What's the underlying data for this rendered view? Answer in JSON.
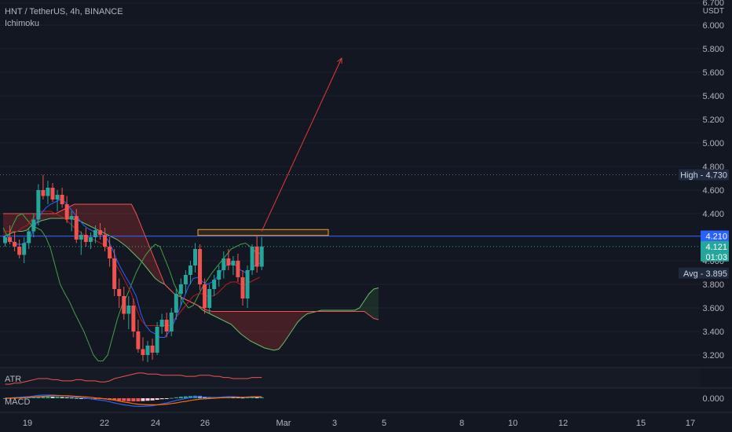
{
  "legend": {
    "symbol_line": "HNT / TetherUS, 4h, BINANCE",
    "indicator": "Ichimoku"
  },
  "panes": {
    "atr_label": "ATR",
    "macd_label": "MACD"
  },
  "colors": {
    "background": "#131722",
    "up": "#26a69a",
    "down": "#ef5350",
    "price_line": "#2962ff",
    "high_tag": "#1e2a44",
    "current_tag": "#26a69a",
    "projection": "#e53935",
    "box": "#f0a030",
    "tenkan": "#2962ff",
    "kijun": "#b71c1c",
    "chikou": "#43a047",
    "span_a": "#66bb6a",
    "span_b": "#ef5350"
  },
  "chart_data": {
    "type": "candlestick",
    "symbol": "HNT / TetherUS",
    "timeframe": "4h",
    "exchange": "BINANCE",
    "y_axis": {
      "unit": "USDT",
      "range": [
        3.13,
        6.7
      ],
      "ticks": [
        "3.200",
        "3.400",
        "3.600",
        "3.800",
        "4.000",
        "4.200",
        "4.400",
        "4.600",
        "4.800",
        "5.000",
        "5.200",
        "5.400",
        "5.600",
        "5.800",
        "6.000",
        "6.700"
      ]
    },
    "x_axis": {
      "tick_labels": [
        "19",
        "22",
        "24",
        "26",
        "Mar",
        "3",
        "5",
        "8",
        "10",
        "12",
        "15",
        "17"
      ]
    },
    "price_tags": [
      {
        "label": "High",
        "value": "4.730"
      },
      {
        "label": "",
        "value": "4.210"
      },
      {
        "label": "",
        "value": "4.121",
        "sub": "01:03"
      },
      {
        "label": "Avg",
        "value": "3.895"
      }
    ],
    "macd_tick": "0.000",
    "candles": [
      [
        4.15,
        4.22,
        4.12,
        4.2
      ],
      [
        4.2,
        4.3,
        4.14,
        4.16
      ],
      [
        4.16,
        4.24,
        4.08,
        4.12
      ],
      [
        4.12,
        4.18,
        4.02,
        4.05
      ],
      [
        4.05,
        4.2,
        3.98,
        4.15
      ],
      [
        4.15,
        4.28,
        4.1,
        4.25
      ],
      [
        4.25,
        4.4,
        4.2,
        4.35
      ],
      [
        4.35,
        4.65,
        4.3,
        4.6
      ],
      [
        4.6,
        4.73,
        4.52,
        4.55
      ],
      [
        4.55,
        4.68,
        4.48,
        4.62
      ],
      [
        4.62,
        4.66,
        4.5,
        4.52
      ],
      [
        4.52,
        4.6,
        4.42,
        4.56
      ],
      [
        4.56,
        4.62,
        4.45,
        4.48
      ],
      [
        4.48,
        4.55,
        4.32,
        4.35
      ],
      [
        4.35,
        4.42,
        4.25,
        4.38
      ],
      [
        4.38,
        4.44,
        4.15,
        4.18
      ],
      [
        4.18,
        4.25,
        4.05,
        4.22
      ],
      [
        4.22,
        4.28,
        4.12,
        4.16
      ],
      [
        4.16,
        4.24,
        4.1,
        4.2
      ],
      [
        4.2,
        4.3,
        4.15,
        4.26
      ],
      [
        4.26,
        4.32,
        4.18,
        4.22
      ],
      [
        4.22,
        4.28,
        4.08,
        4.12
      ],
      [
        4.12,
        4.2,
        3.95,
        4.02
      ],
      [
        4.02,
        4.1,
        3.7,
        3.76
      ],
      [
        3.76,
        3.85,
        3.6,
        3.7
      ],
      [
        3.7,
        3.78,
        3.5,
        3.55
      ],
      [
        3.55,
        3.7,
        3.42,
        3.62
      ],
      [
        3.62,
        3.68,
        3.35,
        3.4
      ],
      [
        3.4,
        3.5,
        3.22,
        3.25
      ],
      [
        3.25,
        3.35,
        3.15,
        3.2
      ],
      [
        3.2,
        3.32,
        3.14,
        3.28
      ],
      [
        3.28,
        3.34,
        3.16,
        3.22
      ],
      [
        3.22,
        3.48,
        3.2,
        3.44
      ],
      [
        3.44,
        3.55,
        3.38,
        3.5
      ],
      [
        3.5,
        3.56,
        3.35,
        3.4
      ],
      [
        3.4,
        3.6,
        3.36,
        3.56
      ],
      [
        3.56,
        3.76,
        3.5,
        3.72
      ],
      [
        3.72,
        3.85,
        3.62,
        3.8
      ],
      [
        3.8,
        3.92,
        3.72,
        3.88
      ],
      [
        3.88,
        4.0,
        3.8,
        3.96
      ],
      [
        3.96,
        4.15,
        3.9,
        4.1
      ],
      [
        4.1,
        4.14,
        3.75,
        3.8
      ],
      [
        3.8,
        3.85,
        3.55,
        3.6
      ],
      [
        3.6,
        3.8,
        3.55,
        3.76
      ],
      [
        3.76,
        3.88,
        3.7,
        3.84
      ],
      [
        3.84,
        3.96,
        3.78,
        3.92
      ],
      [
        3.92,
        4.08,
        3.85,
        4.02
      ],
      [
        4.02,
        4.1,
        3.92,
        3.96
      ],
      [
        3.96,
        4.04,
        3.88,
        4.0
      ],
      [
        4.0,
        4.06,
        3.82,
        3.86
      ],
      [
        3.86,
        3.92,
        3.62,
        3.68
      ],
      [
        3.68,
        3.96,
        3.6,
        3.92
      ],
      [
        3.92,
        4.14,
        3.88,
        4.12
      ],
      [
        4.12,
        4.21,
        3.9,
        3.95
      ],
      [
        3.95,
        4.2,
        3.92,
        4.121
      ]
    ],
    "ichimoku": {
      "tenkan": [
        4.18,
        4.18,
        4.16,
        4.14,
        4.14,
        4.16,
        4.22,
        4.32,
        4.4,
        4.45,
        4.48,
        4.5,
        4.52,
        4.5,
        4.45,
        4.4,
        4.35,
        4.3,
        4.27,
        4.25,
        4.24,
        4.22,
        4.18,
        4.1,
        4.0,
        3.92,
        3.85,
        3.78,
        3.7,
        3.55,
        3.45,
        3.4,
        3.38,
        3.35,
        3.35,
        3.4,
        3.48,
        3.58,
        3.68,
        3.78,
        3.85,
        3.86,
        3.82,
        3.8,
        3.82,
        3.86,
        3.92,
        3.96,
        3.98,
        3.96,
        3.92,
        3.9,
        3.92,
        3.96,
        3.98
      ],
      "kijun": [
        4.25,
        4.25,
        4.25,
        4.25,
        4.28,
        4.3,
        4.35,
        4.4,
        4.42,
        4.42,
        4.42,
        4.4,
        4.38,
        4.36,
        4.32,
        4.28,
        4.25,
        4.22,
        4.2,
        4.18,
        4.16,
        4.14,
        4.1,
        4.02,
        3.95,
        3.88,
        3.8,
        3.72,
        3.6,
        3.5,
        3.45,
        3.45,
        3.45,
        3.45,
        3.45,
        3.45,
        3.5,
        3.55,
        3.6,
        3.65,
        3.7,
        3.72,
        3.72,
        3.7,
        3.7,
        3.72,
        3.76,
        3.8,
        3.82,
        3.82,
        3.8,
        3.8,
        3.82,
        3.84,
        3.86
      ],
      "span_a": [
        4.2,
        4.22,
        4.24,
        4.25,
        4.25,
        4.26,
        4.3,
        4.32,
        4.34,
        4.35,
        4.36,
        4.36,
        4.36,
        4.36,
        4.36,
        4.35,
        4.34,
        4.32,
        4.3,
        4.28,
        4.26,
        4.24,
        4.22,
        4.2,
        4.18,
        4.15,
        4.12,
        4.08,
        4.04,
        4.0,
        3.95,
        3.9,
        3.85,
        3.82,
        3.8,
        3.76,
        3.72,
        3.7,
        3.68,
        3.66,
        3.64,
        3.62,
        3.58,
        3.56,
        3.54,
        3.52,
        3.5,
        3.48,
        3.46,
        3.42,
        3.38,
        3.35,
        3.32,
        3.3,
        3.28,
        3.26,
        3.25,
        3.24,
        3.25,
        3.3,
        3.36,
        3.42,
        3.48,
        3.52,
        3.55,
        3.56,
        3.57,
        3.58,
        3.58,
        3.58,
        3.58,
        3.58,
        3.58,
        3.58,
        3.58,
        3.6,
        3.66,
        3.72,
        3.76,
        3.77
      ],
      "span_b": [
        4.4,
        4.4,
        4.4,
        4.4,
        4.4,
        4.4,
        4.4,
        4.4,
        4.4,
        4.4,
        4.4,
        4.4,
        4.42,
        4.44,
        4.46,
        4.48,
        4.48,
        4.48,
        4.48,
        4.48,
        4.48,
        4.48,
        4.48,
        4.48,
        4.48,
        4.48,
        4.48,
        4.48,
        4.4,
        4.3,
        4.2,
        4.1,
        4.0,
        3.9,
        3.8,
        3.76,
        3.72,
        3.7,
        3.68,
        3.66,
        3.64,
        3.62,
        3.6,
        3.58,
        3.57,
        3.57,
        3.57,
        3.57,
        3.57,
        3.57,
        3.57,
        3.57,
        3.57,
        3.57,
        3.57,
        3.57,
        3.57,
        3.57,
        3.57,
        3.57,
        3.57,
        3.57,
        3.57,
        3.57,
        3.57,
        3.57,
        3.57,
        3.57,
        3.57,
        3.57,
        3.57,
        3.57,
        3.57,
        3.57,
        3.57,
        3.57,
        3.57,
        3.54,
        3.51,
        3.5
      ],
      "chikou": [
        4.28,
        4.2,
        4.3,
        4.38,
        4.4,
        4.35,
        4.3,
        4.28,
        4.26,
        4.2,
        4.1,
        3.95,
        3.8,
        3.72,
        3.65,
        3.56,
        3.48,
        3.4,
        3.3,
        3.2,
        3.15,
        3.15,
        3.2,
        3.35,
        3.5,
        3.62,
        3.7,
        3.8,
        3.9,
        3.98,
        4.05,
        4.1,
        4.14,
        4.12,
        4.02,
        3.92,
        3.8,
        3.72,
        3.65,
        3.6,
        3.62,
        3.7,
        3.78,
        3.84,
        3.9,
        3.95,
        4.0,
        4.05,
        4.1,
        4.12,
        4.14,
        4.15,
        4.12,
        4.08,
        4.06
      ]
    },
    "projection": {
      "from": 4.25,
      "to": 5.72
    },
    "resistance_box": {
      "top": 4.265,
      "bottom": 4.215
    },
    "horizontal_lines": {
      "high": 4.73,
      "ref": 4.21,
      "last": 4.121
    },
    "atr": [
      0.07,
      0.07,
      0.08,
      0.08,
      0.09,
      0.1,
      0.11,
      0.12,
      0.12,
      0.12,
      0.11,
      0.11,
      0.1,
      0.1,
      0.1,
      0.11,
      0.11,
      0.1,
      0.1,
      0.1,
      0.09,
      0.09,
      0.1,
      0.12,
      0.13,
      0.14,
      0.15,
      0.16,
      0.17,
      0.17,
      0.16,
      0.16,
      0.16,
      0.15,
      0.15,
      0.15,
      0.15,
      0.15,
      0.14,
      0.14,
      0.14,
      0.15,
      0.15,
      0.15,
      0.14,
      0.14,
      0.13,
      0.13,
      0.12,
      0.12,
      0.12,
      0.12,
      0.13,
      0.13,
      0.13
    ],
    "macd": {
      "histogram": [
        0.0,
        0.01,
        0.01,
        0.02,
        0.02,
        0.03,
        0.04,
        0.05,
        0.06,
        0.06,
        0.05,
        0.05,
        0.04,
        0.03,
        0.02,
        0.01,
        0.0,
        -0.01,
        -0.01,
        -0.02,
        -0.02,
        -0.03,
        -0.04,
        -0.06,
        -0.08,
        -0.09,
        -0.1,
        -0.1,
        -0.1,
        -0.09,
        -0.08,
        -0.07,
        -0.05,
        -0.03,
        -0.01,
        0.01,
        0.03,
        0.05,
        0.06,
        0.07,
        0.08,
        0.07,
        0.05,
        0.04,
        0.04,
        0.04,
        0.05,
        0.05,
        0.04,
        0.03,
        0.02,
        0.03,
        0.04,
        0.03,
        0.03
      ],
      "macd": [
        0.0,
        0.01,
        0.02,
        0.03,
        0.04,
        0.05,
        0.07,
        0.09,
        0.1,
        0.1,
        0.1,
        0.09,
        0.08,
        0.07,
        0.05,
        0.04,
        0.02,
        0.0,
        -0.02,
        -0.04,
        -0.06,
        -0.08,
        -0.11,
        -0.15,
        -0.18,
        -0.21,
        -0.23,
        -0.25,
        -0.26,
        -0.26,
        -0.25,
        -0.24,
        -0.21,
        -0.18,
        -0.15,
        -0.11,
        -0.07,
        -0.04,
        -0.01,
        0.02,
        0.04,
        0.04,
        0.03,
        0.02,
        0.02,
        0.03,
        0.04,
        0.05,
        0.05,
        0.04,
        0.03,
        0.04,
        0.05,
        0.05,
        0.05
      ],
      "signal": [
        0.0,
        0.0,
        0.01,
        0.01,
        0.02,
        0.03,
        0.04,
        0.05,
        0.06,
        0.07,
        0.08,
        0.08,
        0.08,
        0.08,
        0.07,
        0.06,
        0.05,
        0.04,
        0.03,
        0.01,
        0.0,
        -0.02,
        -0.04,
        -0.06,
        -0.09,
        -0.12,
        -0.14,
        -0.17,
        -0.19,
        -0.2,
        -0.21,
        -0.21,
        -0.21,
        -0.2,
        -0.19,
        -0.17,
        -0.15,
        -0.12,
        -0.1,
        -0.07,
        -0.05,
        -0.03,
        -0.02,
        -0.01,
        0.0,
        0.01,
        0.02,
        0.02,
        0.03,
        0.03,
        0.03,
        0.03,
        0.04,
        0.04,
        0.04
      ]
    }
  }
}
